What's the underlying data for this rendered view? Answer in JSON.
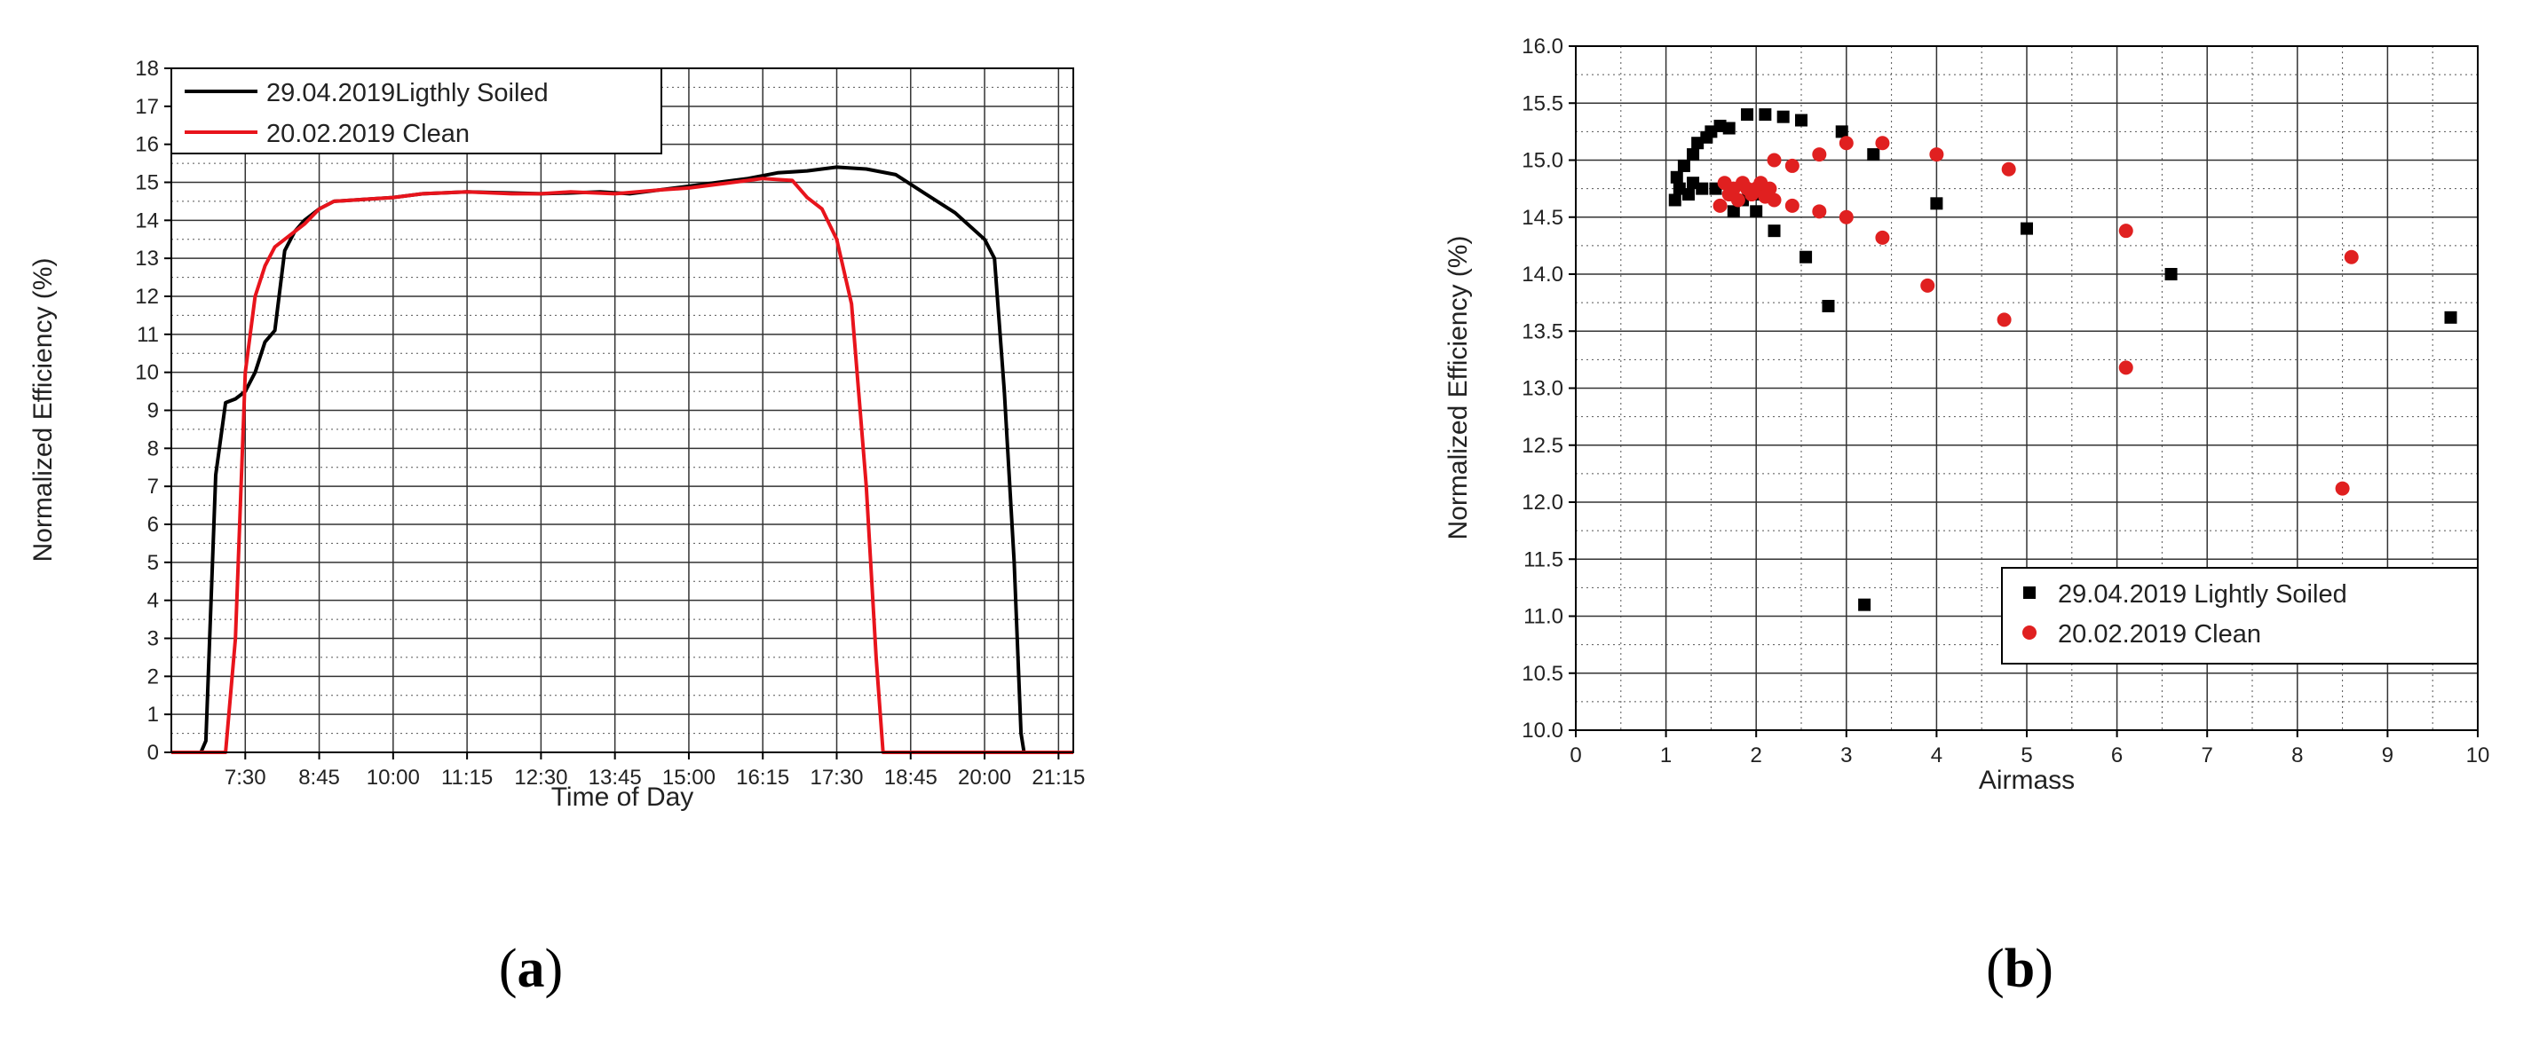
{
  "colors": {
    "black_series": "#000000",
    "red_series": "#e8141c",
    "red_marker": "#e02020"
  },
  "panels": [
    {
      "label_open": "(",
      "label_letter": "a",
      "label_close": ")"
    },
    {
      "label_open": "(",
      "label_letter": "b",
      "label_close": ")"
    }
  ],
  "chart_data": [
    {
      "type": "line",
      "xlabel": "Time of Day",
      "ylabel": "Normalized Efficiency (%)",
      "xlim": [
        "6:15",
        "21:30"
      ],
      "ylim": [
        0,
        18
      ],
      "x_ticks": [
        "7:30",
        "8:45",
        "10:00",
        "11:15",
        "12:30",
        "13:45",
        "15:00",
        "16:15",
        "17:30",
        "18:45",
        "20:00",
        "21:15"
      ],
      "y_ticks": [
        "0",
        "1",
        "2",
        "3",
        "4",
        "5",
        "6",
        "7",
        "8",
        "9",
        "10",
        "11",
        "12",
        "13",
        "14",
        "15",
        "16",
        "17",
        "18"
      ],
      "grid": true,
      "legend_position": "top-left",
      "series": [
        {
          "name": "29.04.2019Ligthly Soiled",
          "color": "black",
          "points": [
            [
              "6:15",
              0
            ],
            [
              "6:45",
              0
            ],
            [
              "6:50",
              0.3
            ],
            [
              "7:00",
              7.3
            ],
            [
              "7:10",
              9.2
            ],
            [
              "7:20",
              9.3
            ],
            [
              "7:30",
              9.5
            ],
            [
              "7:40",
              10
            ],
            [
              "7:50",
              10.8
            ],
            [
              "8:00",
              11.1
            ],
            [
              "8:10",
              13.2
            ],
            [
              "8:20",
              13.7
            ],
            [
              "8:30",
              14
            ],
            [
              "8:45",
              14.3
            ],
            [
              "9:00",
              14.5
            ],
            [
              "9:30",
              14.55
            ],
            [
              "10:00",
              14.6
            ],
            [
              "10:30",
              14.7
            ],
            [
              "11:15",
              14.75
            ],
            [
              "12:00",
              14.72
            ],
            [
              "12:30",
              14.7
            ],
            [
              "13:00",
              14.72
            ],
            [
              "13:30",
              14.75
            ],
            [
              "14:00",
              14.7
            ],
            [
              "14:30",
              14.8
            ],
            [
              "15:00",
              14.9
            ],
            [
              "15:30",
              15
            ],
            [
              "16:00",
              15.1
            ],
            [
              "16:30",
              15.25
            ],
            [
              "17:00",
              15.3
            ],
            [
              "17:30",
              15.4
            ],
            [
              "18:00",
              15.35
            ],
            [
              "18:30",
              15.2
            ],
            [
              "19:00",
              14.7
            ],
            [
              "19:30",
              14.2
            ],
            [
              "20:00",
              13.5
            ],
            [
              "20:10",
              13
            ],
            [
              "20:20",
              9.5
            ],
            [
              "20:30",
              5
            ],
            [
              "20:37",
              0.5
            ],
            [
              "20:40",
              0
            ],
            [
              "21:30",
              0
            ]
          ]
        },
        {
          "name": "20.02.2019 Clean",
          "color": "red",
          "points": [
            [
              "6:15",
              0
            ],
            [
              "7:10",
              0
            ],
            [
              "7:20",
              3
            ],
            [
              "7:30",
              10
            ],
            [
              "7:40",
              12
            ],
            [
              "7:50",
              12.8
            ],
            [
              "8:00",
              13.3
            ],
            [
              "8:15",
              13.6
            ],
            [
              "8:30",
              13.9
            ],
            [
              "8:45",
              14.3
            ],
            [
              "9:00",
              14.5
            ],
            [
              "9:30",
              14.55
            ],
            [
              "10:00",
              14.6
            ],
            [
              "10:30",
              14.7
            ],
            [
              "11:15",
              14.75
            ],
            [
              "12:00",
              14.7
            ],
            [
              "12:30",
              14.7
            ],
            [
              "13:00",
              14.75
            ],
            [
              "13:45",
              14.7
            ],
            [
              "14:30",
              14.8
            ],
            [
              "15:00",
              14.85
            ],
            [
              "15:30",
              14.95
            ],
            [
              "16:00",
              15.05
            ],
            [
              "16:15",
              15.1
            ],
            [
              "16:45",
              15.05
            ],
            [
              "17:00",
              14.6
            ],
            [
              "17:15",
              14.3
            ],
            [
              "17:30",
              13.5
            ],
            [
              "17:45",
              11.8
            ],
            [
              "18:00",
              7
            ],
            [
              "18:10",
              2.5
            ],
            [
              "18:17",
              0
            ],
            [
              "21:30",
              0
            ]
          ]
        }
      ]
    },
    {
      "type": "scatter",
      "xlabel": "Airmass",
      "ylabel": "Normalized Efficiency (%)",
      "xlim": [
        0,
        10
      ],
      "ylim": [
        10,
        16
      ],
      "x_ticks": [
        "0",
        "1",
        "2",
        "3",
        "4",
        "5",
        "6",
        "7",
        "8",
        "9",
        "10"
      ],
      "y_ticks": [
        "10.0",
        "10.5",
        "11.0",
        "11.5",
        "12.0",
        "12.5",
        "13.0",
        "13.5",
        "14.0",
        "14.5",
        "15.0",
        "15.5",
        "16.0"
      ],
      "grid": true,
      "legend_position": "bottom-right",
      "series": [
        {
          "name": "29.04.2019 Lightly Soiled",
          "marker": "square",
          "color": "black",
          "points": [
            [
              1.1,
              14.65
            ],
            [
              1.12,
              14.85
            ],
            [
              1.15,
              14.75
            ],
            [
              1.2,
              14.95
            ],
            [
              1.25,
              14.7
            ],
            [
              1.3,
              15.05
            ],
            [
              1.3,
              14.8
            ],
            [
              1.35,
              15.15
            ],
            [
              1.4,
              14.75
            ],
            [
              1.45,
              15.2
            ],
            [
              1.5,
              15.25
            ],
            [
              1.55,
              14.75
            ],
            [
              1.6,
              15.3
            ],
            [
              1.7,
              15.28
            ],
            [
              1.75,
              14.55
            ],
            [
              1.85,
              14.65
            ],
            [
              1.9,
              15.4
            ],
            [
              2.0,
              14.55
            ],
            [
              2.05,
              14.7
            ],
            [
              2.1,
              15.4
            ],
            [
              2.2,
              14.38
            ],
            [
              2.3,
              15.38
            ],
            [
              2.5,
              15.35
            ],
            [
              2.55,
              14.15
            ],
            [
              2.8,
              13.72
            ],
            [
              2.95,
              15.25
            ],
            [
              3.2,
              11.1
            ],
            [
              3.3,
              15.05
            ],
            [
              4.0,
              14.62
            ],
            [
              5.0,
              14.4
            ],
            [
              6.6,
              14.0
            ],
            [
              9.7,
              13.62
            ]
          ]
        },
        {
          "name": "20.02.2019 Clean",
          "marker": "circle",
          "color": "red",
          "points": [
            [
              1.6,
              14.6
            ],
            [
              1.65,
              14.8
            ],
            [
              1.7,
              14.7
            ],
            [
              1.75,
              14.75
            ],
            [
              1.8,
              14.65
            ],
            [
              1.85,
              14.8
            ],
            [
              1.9,
              14.75
            ],
            [
              1.95,
              14.7
            ],
            [
              2.0,
              14.75
            ],
            [
              2.05,
              14.8
            ],
            [
              2.1,
              14.68
            ],
            [
              2.15,
              14.75
            ],
            [
              2.2,
              15.0
            ],
            [
              2.2,
              14.65
            ],
            [
              2.4,
              14.95
            ],
            [
              2.4,
              14.6
            ],
            [
              2.7,
              15.05
            ],
            [
              2.7,
              14.55
            ],
            [
              3.0,
              15.15
            ],
            [
              3.0,
              14.5
            ],
            [
              3.4,
              15.15
            ],
            [
              3.4,
              14.32
            ],
            [
              3.9,
              13.9
            ],
            [
              4.0,
              15.05
            ],
            [
              4.75,
              13.6
            ],
            [
              4.8,
              14.92
            ],
            [
              6.1,
              14.38
            ],
            [
              6.1,
              13.18
            ],
            [
              8.5,
              12.12
            ],
            [
              8.6,
              14.15
            ]
          ]
        }
      ]
    }
  ]
}
